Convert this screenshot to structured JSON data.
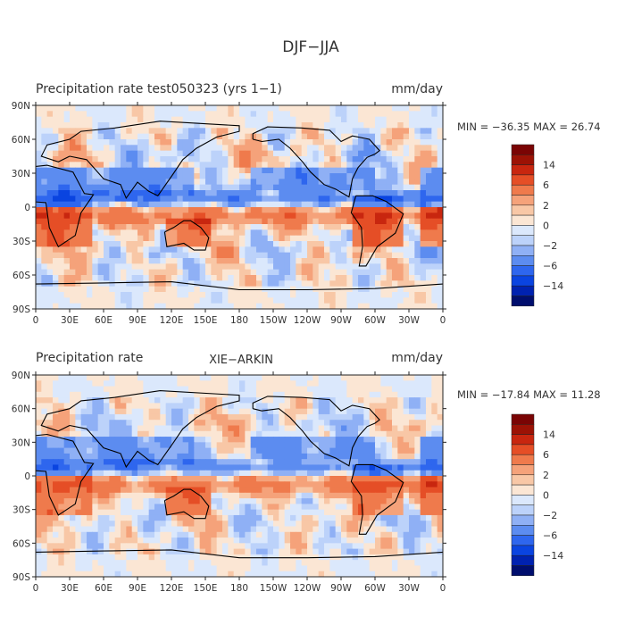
{
  "figure": {
    "title": "DJF−JJA"
  },
  "colors": {
    "levels_blue": [
      "#000e6e",
      "#0022b0",
      "#0a44e0",
      "#2e66ee",
      "#5c8cf0",
      "#8fb0f5",
      "#bcd2fa",
      "#dbe8fc"
    ],
    "levels_red": [
      "#fbe6d4",
      "#f8c7a6",
      "#f5a27a",
      "#ef7a4c",
      "#e54e26",
      "#c8260f",
      "#9c1205",
      "#7a0404"
    ],
    "land": "#000000"
  },
  "panels": [
    {
      "id": "model",
      "title": "Precipitation rate  test050323 (yrs 1−1)",
      "center_label": "",
      "units": "mm/day",
      "stats": "MIN = −36.35 MAX =  26.74"
    },
    {
      "id": "obs",
      "title": "Precipitation rate",
      "center_label": "XIE−ARKIN",
      "units": "mm/day",
      "stats": "MIN = −17.84 MAX =  11.28"
    }
  ],
  "axes": {
    "lat_labels": [
      "90N",
      "60N",
      "30N",
      "0",
      "30S",
      "60S",
      "90S"
    ],
    "lon_labels": [
      "0",
      "30E",
      "60E",
      "90E",
      "120E",
      "150E",
      "180",
      "150W",
      "120W",
      "90W",
      "60W",
      "30W",
      "0"
    ]
  },
  "colorbar": {
    "tick_labels": [
      "14",
      "6",
      "2",
      "0",
      "−2",
      "−6",
      "−14"
    ]
  }
}
